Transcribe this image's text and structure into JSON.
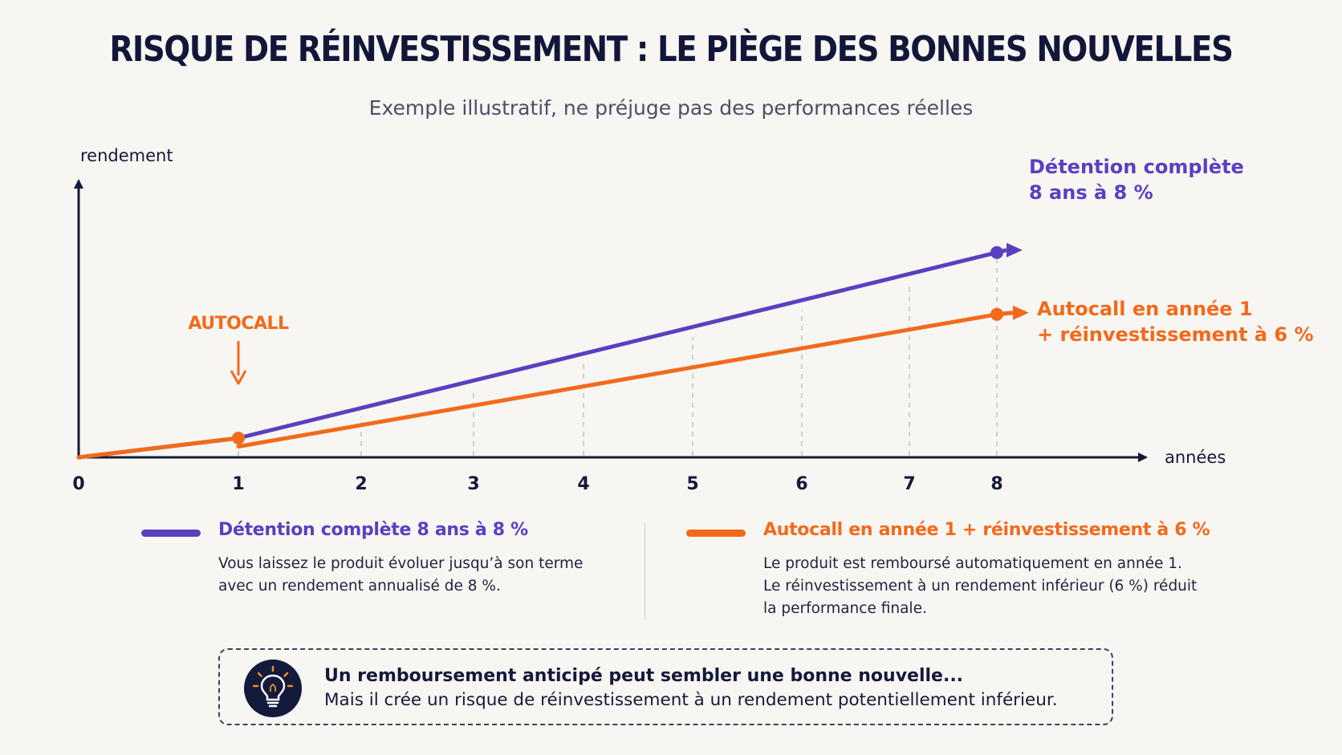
{
  "title": "RISQUE DE RÉINVESTISSEMENT : LE PIÈGE DES BONNES NOUVELLES",
  "subtitle": "Exemple illustratif, ne préjuge pas des performances réelles",
  "colors": {
    "purple": "#5a3fc0",
    "orange": "#f26a1b",
    "navy": "#14193a",
    "background": "#f8f6f2"
  },
  "chart_data": {
    "type": "line",
    "xlabel": "années",
    "ylabel": "rendement",
    "x_ticks": [
      "0",
      "1",
      "2",
      "3",
      "4",
      "5",
      "6",
      "7",
      "8"
    ],
    "xlim": [
      0,
      8
    ],
    "grid": "vertical dashed at years 1-8",
    "series": [
      {
        "name": "Détention complète 8 ans à 8 %",
        "color": "#5a3fc0",
        "x": [
          0,
          1,
          8
        ],
        "y": [
          0,
          8,
          85.1
        ],
        "end_label": [
          "Détention complète",
          "8 ans à 8 %"
        ]
      },
      {
        "name": "Autocall en année 1 + réinvestissement à 6 %",
        "color": "#f26a1b",
        "segments": [
          {
            "x": [
              0,
              1
            ],
            "y": [
              0,
              8
            ]
          },
          {
            "x": [
              1,
              8
            ],
            "y": [
              4.5,
              59.4
            ]
          }
        ],
        "end_label": [
          "Autocall en année 1",
          "+ réinvestissement à 6 %"
        ]
      }
    ],
    "annotations": [
      {
        "text": "AUTOCALL",
        "x": 1,
        "color": "#f26a1b"
      }
    ]
  },
  "legend": [
    {
      "title": "Détention complète 8 ans à 8 %",
      "desc": "Vous laissez le produit évoluer jusqu’à son terme\navec un rendement annualisé de 8 %."
    },
    {
      "title": "Autocall en année 1 + réinvestissement à 6 %",
      "desc": "Le produit est remboursé automatiquement en année 1.\nLe réinvestissement à un rendement inférieur (6 %) réduit\nla performance finale."
    }
  ],
  "tip": {
    "icon": "lightbulb-icon",
    "line1": "Un remboursement anticipé peut sembler une bonne nouvelle...",
    "line2": "Mais il crée un risque de réinvestissement à un rendement potentiellement inférieur."
  }
}
